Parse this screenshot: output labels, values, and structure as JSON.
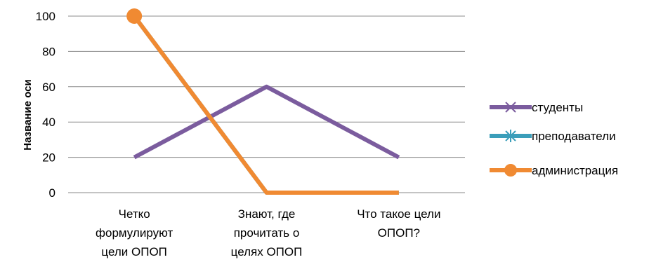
{
  "chart_data": {
    "type": "line",
    "ylabel": "Название оси",
    "ylim": [
      0,
      100
    ],
    "yticks": [
      0,
      20,
      40,
      60,
      80,
      100
    ],
    "grid": true,
    "legend_position": "right",
    "categories": [
      [
        "Четко",
        "формулируют",
        "цели ОПОП"
      ],
      [
        "Знают, где",
        "прочитать о",
        "целях ОПОП"
      ],
      [
        "Что такое цели",
        "ОПОП?"
      ]
    ],
    "series": [
      {
        "name": "студенты",
        "values": [
          20,
          60,
          20
        ],
        "color": "#7B5C9E",
        "marker": "x"
      },
      {
        "name": "преподаватели",
        "values": [
          100,
          0,
          0
        ],
        "color": "#3B9EBA",
        "marker": "star"
      },
      {
        "name": "администрация",
        "values": [
          100,
          0,
          0
        ],
        "color": "#F08A32",
        "marker": "circle"
      }
    ]
  }
}
